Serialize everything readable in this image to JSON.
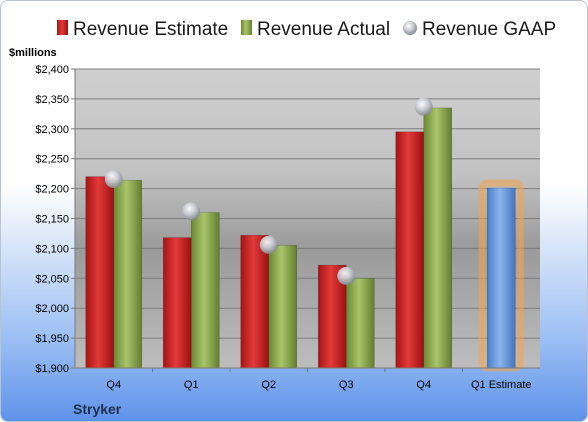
{
  "chart_data": {
    "type": "bar",
    "company": "Stryker",
    "ylabel": "$millions",
    "ylim": [
      1900,
      2400
    ],
    "ytick_step": 50,
    "ytick_labels": [
      "$1,900",
      "$1,950",
      "$2,000",
      "$2,050",
      "$2,100",
      "$2,150",
      "$2,200",
      "$2,250",
      "$2,300",
      "$2,350",
      "$2,400"
    ],
    "categories": [
      "Q4",
      "Q1",
      "Q2",
      "Q3",
      "Q4",
      "Q1 Estimate"
    ],
    "series": [
      {
        "name": "Revenue Estimate",
        "kind": "bar",
        "color": "#d62728",
        "values": [
          2220,
          2118,
          2122,
          2072,
          2295,
          null
        ]
      },
      {
        "name": "Revenue Actual",
        "kind": "bar",
        "color": "#8cab4d",
        "values": [
          2214,
          2160,
          2105,
          2050,
          2335,
          null
        ]
      },
      {
        "name": "Revenue GAAP",
        "kind": "marker",
        "color": "#b8bcc4",
        "values": [
          2216,
          2162,
          2106,
          2054,
          2337,
          null
        ]
      }
    ],
    "forecast": {
      "category": "Q1 Estimate",
      "value": 2201,
      "color": "#6d9de0",
      "glow": "#f6a64a"
    },
    "grid": true,
    "legend_position": "top"
  }
}
